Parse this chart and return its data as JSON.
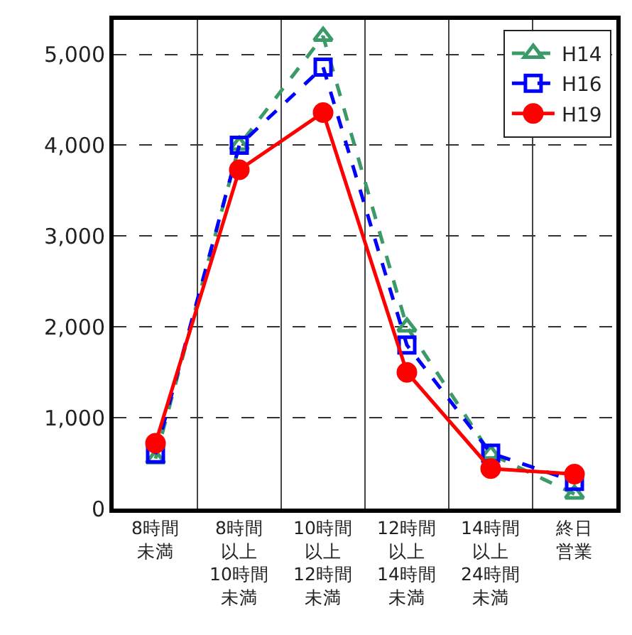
{
  "chart_data": {
    "type": "line",
    "categories": [
      "8時間未満",
      "8時間以上10時間未満",
      "10時間以上12時間未満",
      "12時間以上14時間未満",
      "14時間以上24時間未満",
      "終日営業"
    ],
    "series": [
      {
        "name": "H14",
        "color": "#3a9a68",
        "marker": "triangle",
        "line_style": "dashed",
        "values": [
          550,
          4000,
          5200,
          2000,
          600,
          160
        ]
      },
      {
        "name": "H16",
        "color": "#0000ff",
        "marker": "square",
        "line_style": "dashed",
        "values": [
          600,
          4000,
          4860,
          1800,
          610,
          300
        ]
      },
      {
        "name": "H19",
        "color": "#ff0000",
        "marker": "circle",
        "line_style": "solid",
        "values": [
          720,
          3730,
          4360,
          1500,
          440,
          380
        ]
      }
    ],
    "ylim": [
      0,
      5380
    ],
    "yticks": [
      0,
      {
        "value": 1000,
        "label": "1,000"
      },
      {
        "value": 2000,
        "label": "2,000"
      },
      {
        "value": 3000,
        "label": "3,000"
      },
      {
        "value": 4000,
        "label": "4,000"
      },
      {
        "value": 5000,
        "label": "5,000"
      }
    ],
    "grid": true,
    "legend": "top right"
  }
}
